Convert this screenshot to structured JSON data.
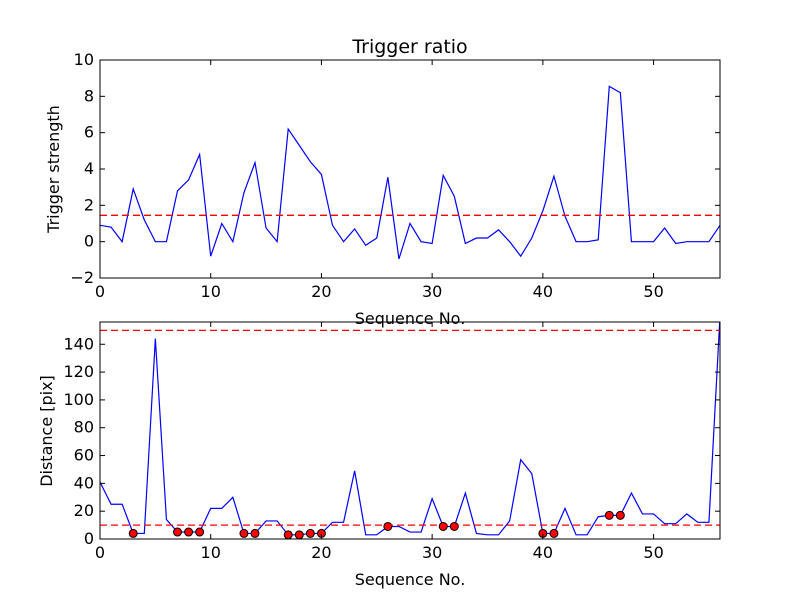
{
  "chart_data": [
    {
      "type": "line",
      "title": "Trigger ratio",
      "xlabel": "Sequence No.",
      "ylabel": "Trigger strength",
      "xlim": [
        0,
        56
      ],
      "ylim": [
        -2,
        10
      ],
      "xticks": [
        "0",
        "10",
        "20",
        "30",
        "40",
        "50"
      ],
      "yticks": [
        "−2",
        "0",
        "2",
        "4",
        "6",
        "8",
        "10"
      ],
      "grid": false,
      "series": [
        {
          "style": "solid",
          "color": "#0000ff",
          "x": [
            0,
            1,
            2,
            3,
            4,
            5,
            6,
            7,
            8,
            9,
            10,
            11,
            12,
            13,
            14,
            15,
            16,
            17,
            18,
            19,
            20,
            21,
            22,
            23,
            24,
            25,
            26,
            27,
            28,
            29,
            30,
            31,
            32,
            33,
            34,
            35,
            36,
            37,
            38,
            39,
            40,
            41,
            42,
            43,
            44,
            45,
            46,
            47,
            48,
            49,
            50,
            51,
            52,
            53,
            54,
            55,
            56
          ],
          "y": [
            0.9,
            0.8,
            0.0,
            2.9,
            1.2,
            0.0,
            0.0,
            2.8,
            3.4,
            4.8,
            -0.8,
            1.0,
            0.0,
            2.7,
            4.35,
            0.75,
            0.0,
            6.2,
            5.3,
            4.4,
            3.7,
            0.9,
            0.0,
            0.7,
            -0.2,
            0.2,
            3.55,
            -0.95,
            1.0,
            0.0,
            -0.1,
            3.65,
            2.5,
            -0.1,
            0.2,
            0.2,
            0.65,
            0.0,
            -0.8,
            0.2,
            1.7,
            3.6,
            1.4,
            0.0,
            0.0,
            0.1,
            8.55,
            8.2,
            0.0,
            0.0,
            0.0,
            0.75,
            -0.1,
            0.0,
            0.0,
            0.0,
            0.9
          ]
        },
        {
          "style": "dashed",
          "color": "#ff0000",
          "x": [
            0,
            56
          ],
          "y": [
            1.45,
            1.45
          ]
        }
      ]
    },
    {
      "type": "line",
      "title": "",
      "xlabel": "Sequence No.",
      "ylabel": "Distance [pix]",
      "xlim": [
        0,
        56
      ],
      "ylim": [
        0,
        156
      ],
      "xticks": [
        "0",
        "10",
        "20",
        "30",
        "40",
        "50"
      ],
      "yticks": [
        "0",
        "20",
        "40",
        "60",
        "80",
        "100",
        "120",
        "140"
      ],
      "grid": false,
      "series": [
        {
          "style": "solid",
          "color": "#0000ff",
          "x": [
            0,
            1,
            2,
            3,
            4,
            5,
            6,
            7,
            8,
            9,
            10,
            11,
            12,
            13,
            14,
            15,
            16,
            17,
            18,
            19,
            20,
            21,
            22,
            23,
            24,
            25,
            26,
            27,
            28,
            29,
            30,
            31,
            32,
            33,
            34,
            35,
            36,
            37,
            38,
            39,
            40,
            41,
            42,
            43,
            44,
            45,
            46,
            47,
            48,
            49,
            50,
            51,
            52,
            53,
            54,
            55,
            56
          ],
          "y": [
            41,
            25,
            25,
            4,
            4,
            144,
            14,
            5,
            5,
            5,
            22,
            22,
            30,
            4,
            4,
            13,
            13,
            3,
            3,
            4,
            4,
            12,
            12,
            49,
            3,
            3,
            9,
            9,
            5,
            5,
            29,
            9,
            9,
            33,
            4,
            3,
            3,
            13,
            57,
            47,
            4,
            4,
            22,
            3,
            3,
            16,
            17,
            17,
            33,
            18,
            18,
            11,
            11,
            18,
            12,
            12,
            160
          ]
        },
        {
          "style": "markers",
          "color": "#ff0000",
          "x": [
            3,
            7,
            8,
            9,
            13,
            14,
            17,
            18,
            19,
            20,
            26,
            31,
            32,
            40,
            41,
            46,
            47
          ],
          "y": [
            4,
            5,
            5,
            5,
            4,
            4,
            3,
            3,
            4,
            4,
            9,
            9,
            9,
            4,
            4,
            17,
            17
          ]
        },
        {
          "style": "dashed",
          "color": "#ff0000",
          "x": [
            0,
            56
          ],
          "y": [
            10,
            10
          ]
        },
        {
          "style": "dashed",
          "color": "#ff0000",
          "x": [
            0,
            56
          ],
          "y": [
            150,
            150
          ]
        }
      ]
    }
  ]
}
